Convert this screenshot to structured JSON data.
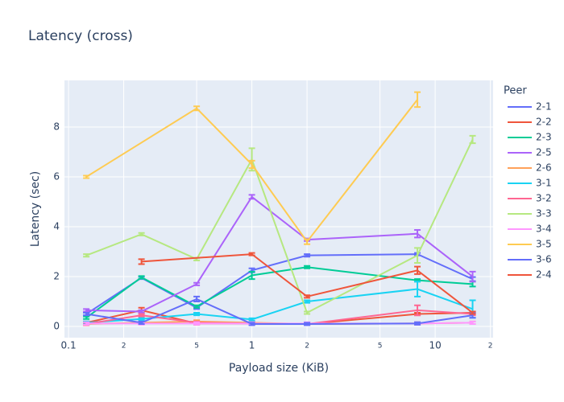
{
  "chart_data": {
    "type": "line",
    "title": "Latency (cross)",
    "x_label": "Payload size (KiB)",
    "y_label": "Latency (sec)",
    "x_log": true,
    "grid": true,
    "legend_title": "Peer",
    "legend_position": "right",
    "x": [
      0.125,
      0.25,
      0.5,
      1,
      2,
      8,
      16
    ],
    "xlim": [
      0.095,
      20.7
    ],
    "xticks": [
      0.1,
      {
        "value": 0.2,
        "label": "2"
      },
      {
        "value": 0.5,
        "label": "5"
      },
      1,
      {
        "value": 2,
        "label": "2"
      },
      {
        "value": 5,
        "label": "5"
      },
      10,
      {
        "value": 20,
        "label": "2"
      }
    ],
    "ylim": [
      -0.45,
      9.87
    ],
    "yticks": [
      0,
      2,
      4,
      6,
      8
    ],
    "series": [
      {
        "name": "2-1",
        "color": "#636efa",
        "values": [
          0.5,
          1.95,
          0.75,
          2.25,
          2.85,
          2.9,
          1.9
        ],
        "errors": [
          0.05,
          0.05,
          0.05,
          0.08,
          0.05,
          0.05,
          0.08
        ]
      },
      {
        "name": "2-2",
        "color": "#EF553B",
        "values": [
          0.15,
          0.65,
          0.12,
          0.12,
          0.1,
          0.5,
          0.55
        ],
        "errors": [
          0.05,
          0.1,
          0.05,
          0.05,
          0.05,
          0.05,
          0.05
        ]
      },
      {
        "name": "2-3",
        "color": "#00cc96",
        "values": [
          0.35,
          1.97,
          0.8,
          2.05,
          2.38,
          1.85,
          1.7
        ],
        "errors": [
          0.05,
          0.05,
          0.05,
          0.15,
          0.05,
          0.05,
          0.1
        ]
      },
      {
        "name": "2-5",
        "color": "#ab63fa",
        "values": [
          0.65,
          0.6,
          1.7,
          5.2,
          3.48,
          3.72,
          2.0
        ],
        "errors": [
          0.05,
          0.05,
          0.05,
          0.08,
          0.05,
          0.15,
          0.2
        ]
      },
      {
        "name": "2-6",
        "color": "#FFA15A",
        "values": [
          0.1,
          0.15,
          0.2,
          0.15,
          0.1,
          0.12,
          0.15
        ],
        "errors": [
          0.05,
          0.05,
          0.05,
          0.05,
          0.05,
          0.05,
          0.05
        ]
      },
      {
        "name": "3-1",
        "color": "#19d3f3",
        "values": [
          0.15,
          0.3,
          0.5,
          0.28,
          1.0,
          1.5,
          0.7
        ],
        "errors": [
          0.05,
          0.05,
          0.05,
          0.05,
          0.05,
          0.3,
          0.35
        ]
      },
      {
        "name": "3-2",
        "color": "#FF6692",
        "values": [
          0.1,
          0.45,
          0.15,
          0.12,
          0.1,
          0.65,
          0.5
        ],
        "errors": [
          0.05,
          0.05,
          0.05,
          0.05,
          0.05,
          0.2,
          0.05
        ]
      },
      {
        "name": "3-3",
        "color": "#B6E880",
        "values": [
          2.85,
          3.7,
          2.7,
          6.7,
          0.55,
          2.85,
          7.5
        ],
        "errors": [
          0.05,
          0.05,
          0.05,
          0.45,
          0.05,
          0.3,
          0.15
        ]
      },
      {
        "name": "3-4",
        "color": "#FF97FF",
        "values": [
          0.12,
          0.12,
          0.12,
          0.12,
          0.12,
          0.12,
          0.15
        ],
        "errors": [
          0.05,
          0.05,
          0.05,
          0.05,
          0.05,
          0.05,
          0.05
        ]
      },
      {
        "name": "3-5",
        "color": "#FECB52",
        "x": [
          0.125,
          0.5,
          1,
          2,
          8
        ],
        "values": [
          6.0,
          8.75,
          6.5,
          3.4,
          9.1
        ],
        "errors": [
          0.05,
          0.08,
          0.15,
          0.1,
          0.3
        ]
      },
      {
        "name": "3-6",
        "color": "#636efa",
        "values": [
          0.5,
          0.15,
          1.1,
          0.1,
          0.1,
          0.12,
          0.45
        ],
        "errors": [
          0.05,
          0.05,
          0.1,
          0.05,
          0.05,
          0.05,
          0.1
        ]
      },
      {
        "name": "2-4",
        "color": "#EF553B",
        "x": [
          0.25,
          1,
          2,
          8,
          16
        ],
        "values": [
          2.6,
          2.9,
          1.2,
          2.25,
          0.55
        ],
        "errors": [
          0.1,
          0.05,
          0.05,
          0.15,
          0.05
        ]
      }
    ]
  }
}
